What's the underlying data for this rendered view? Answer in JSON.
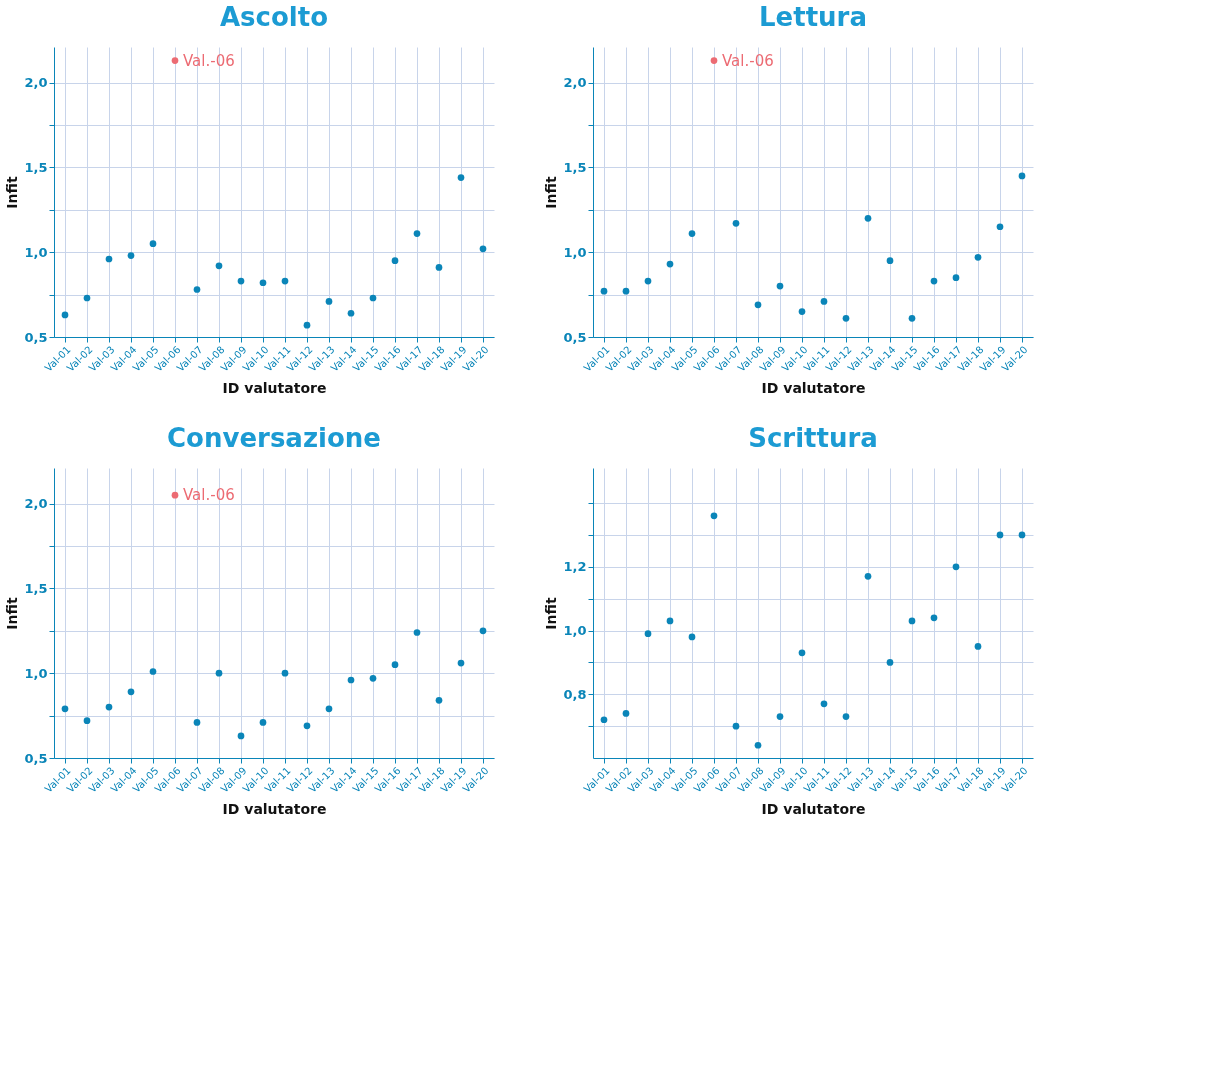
{
  "chart_data": [
    {
      "type": "scatter",
      "title": "Ascolto",
      "xlabel": "ID valutatore",
      "ylabel": "Infit",
      "marker": "circle",
      "grid": true,
      "categories": [
        "Val-01",
        "Val-02",
        "Val-03",
        "Val-04",
        "Val-05",
        "Val-06",
        "Val-07",
        "Val-08",
        "Val-09",
        "Val-10",
        "Val-11",
        "Val-12",
        "Val-13",
        "Val-14",
        "Val-15",
        "Val-16",
        "Val-17",
        "Val-18",
        "Val-19",
        "Val-20"
      ],
      "series": [
        {
          "color": "#0a85b8",
          "values": [
            0.63,
            0.73,
            0.96,
            0.98,
            1.05,
            null,
            0.78,
            0.92,
            0.83,
            0.82,
            0.83,
            0.57,
            0.71,
            0.64,
            0.73,
            0.95,
            1.11,
            0.91,
            1.44,
            1.02
          ]
        },
        {
          "color": "#ec6b73",
          "values": [
            null,
            null,
            null,
            null,
            null,
            2.13,
            null,
            null,
            null,
            null,
            null,
            null,
            null,
            null,
            null,
            null,
            null,
            null,
            null,
            null
          ]
        }
      ],
      "annotations": [
        {
          "text": "Val.-06",
          "x": "Val-06",
          "y": 2.13
        }
      ],
      "ylim": [
        0.5,
        2.21
      ],
      "yticks": [
        {
          "value": 0.5,
          "label": "0,5"
        },
        {
          "value": 0.75,
          "label": null
        },
        {
          "value": 1.0,
          "label": "1,0"
        },
        {
          "value": 1.25,
          "label": null
        },
        {
          "value": 1.5,
          "label": "1,5"
        },
        {
          "value": 1.75,
          "label": null
        },
        {
          "value": 2.0,
          "label": "2,0"
        }
      ]
    },
    {
      "type": "scatter",
      "title": "Lettura",
      "xlabel": "ID valutatore",
      "ylabel": "Infit",
      "marker": "circle",
      "grid": true,
      "categories": [
        "Val-01",
        "Val-02",
        "Val-03",
        "Val-04",
        "Val-05",
        "Val-06",
        "Val-07",
        "Val-08",
        "Val-09",
        "Val-10",
        "Val-11",
        "Val-12",
        "Val-13",
        "Val-14",
        "Val-15",
        "Val-16",
        "Val-17",
        "Val-18",
        "Val-19",
        "Val-20"
      ],
      "series": [
        {
          "color": "#0a85b8",
          "values": [
            0.77,
            0.77,
            0.83,
            0.93,
            1.11,
            null,
            1.17,
            0.69,
            0.8,
            0.65,
            0.71,
            0.61,
            1.2,
            0.95,
            0.61,
            0.83,
            0.85,
            0.97,
            1.15,
            1.45
          ]
        },
        {
          "color": "#ec6b73",
          "values": [
            null,
            null,
            null,
            null,
            null,
            2.13,
            null,
            null,
            null,
            null,
            null,
            null,
            null,
            null,
            null,
            null,
            null,
            null,
            null,
            null
          ]
        }
      ],
      "annotations": [
        {
          "text": "Val.-06",
          "x": "Val-06",
          "y": 2.13
        }
      ],
      "ylim": [
        0.5,
        2.21
      ],
      "yticks": [
        {
          "value": 0.5,
          "label": "0,5"
        },
        {
          "value": 0.75,
          "label": null
        },
        {
          "value": 1.0,
          "label": "1,0"
        },
        {
          "value": 1.25,
          "label": null
        },
        {
          "value": 1.5,
          "label": "1,5"
        },
        {
          "value": 1.75,
          "label": null
        },
        {
          "value": 2.0,
          "label": "2,0"
        }
      ]
    },
    {
      "type": "scatter",
      "title": "Conversazione",
      "xlabel": "ID valutatore",
      "ylabel": "Infit",
      "marker": "circle",
      "grid": true,
      "categories": [
        "Val-01",
        "Val-02",
        "Val-03",
        "Val-04",
        "Val-05",
        "Val-06",
        "Val-07",
        "Val-08",
        "Val-09",
        "Val-10",
        "Val-11",
        "Val-12",
        "Val-13",
        "Val-14",
        "Val-15",
        "Val-16",
        "Val-17",
        "Val-18",
        "Val-19",
        "Val-20"
      ],
      "series": [
        {
          "color": "#0a85b8",
          "values": [
            0.79,
            0.72,
            0.8,
            0.89,
            1.01,
            null,
            0.71,
            1.0,
            0.63,
            0.71,
            1.0,
            0.69,
            0.79,
            0.96,
            0.97,
            1.05,
            1.24,
            0.84,
            1.06,
            1.25
          ]
        },
        {
          "color": "#ec6b73",
          "values": [
            null,
            null,
            null,
            null,
            null,
            2.05,
            null,
            null,
            null,
            null,
            null,
            null,
            null,
            null,
            null,
            null,
            null,
            null,
            null,
            null
          ]
        }
      ],
      "annotations": [
        {
          "text": "Val.-06",
          "x": "Val-06",
          "y": 2.05
        }
      ],
      "ylim": [
        0.5,
        2.21
      ],
      "yticks": [
        {
          "value": 0.5,
          "label": "0,5"
        },
        {
          "value": 0.75,
          "label": null
        },
        {
          "value": 1.0,
          "label": "1,0"
        },
        {
          "value": 1.25,
          "label": null
        },
        {
          "value": 1.5,
          "label": "1,5"
        },
        {
          "value": 1.75,
          "label": null
        },
        {
          "value": 2.0,
          "label": "2,0"
        }
      ]
    },
    {
      "type": "scatter",
      "title": "Scrittura",
      "xlabel": "ID valutatore",
      "ylabel": "Infit",
      "marker": "circle",
      "grid": true,
      "categories": [
        "Val-01",
        "Val-02",
        "Val-03",
        "Val-04",
        "Val-05",
        "Val-06",
        "Val-07",
        "Val-08",
        "Val-09",
        "Val-10",
        "Val-11",
        "Val-12",
        "Val-13",
        "Val-14",
        "Val-15",
        "Val-16",
        "Val-17",
        "Val-18",
        "Val-19",
        "Val-20"
      ],
      "series": [
        {
          "color": "#0a85b8",
          "values": [
            0.72,
            0.74,
            0.99,
            1.03,
            0.98,
            1.36,
            0.7,
            0.64,
            0.73,
            0.93,
            0.77,
            0.73,
            1.17,
            0.9,
            1.03,
            1.04,
            1.2,
            0.95,
            1.3,
            1.3
          ]
        }
      ],
      "ylim": [
        0.6,
        1.51
      ],
      "yticks": [
        {
          "value": 0.7,
          "label": null
        },
        {
          "value": 0.8,
          "label": "0,8"
        },
        {
          "value": 0.9,
          "label": null
        },
        {
          "value": 1.0,
          "label": "1,0"
        },
        {
          "value": 1.1,
          "label": null
        },
        {
          "value": 1.2,
          "label": "1,2"
        },
        {
          "value": 1.3,
          "label": null
        },
        {
          "value": 1.4,
          "label": null
        }
      ]
    }
  ]
}
